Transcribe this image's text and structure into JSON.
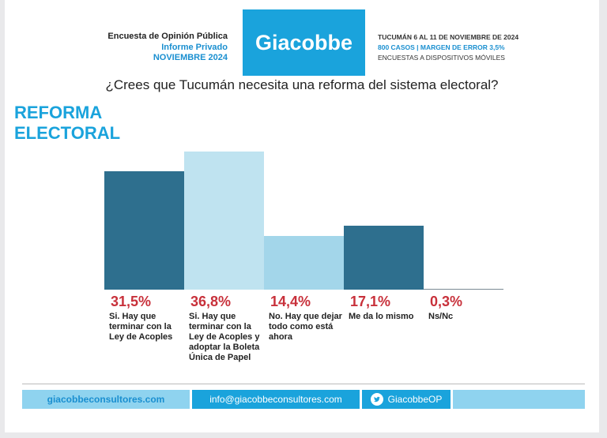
{
  "header": {
    "survey_title": "Encuesta de Opinión Pública",
    "report_type": "Informe Privado",
    "date": "NOVIEMBRE 2024",
    "brand": "Giacobbe",
    "details": [
      "TUCUMÁN 6 AL 11 DE NOVIEMBRE DE 2024",
      "800 CASOS | MARGEN DE ERROR 3,5%",
      "ENCUESTAS A DISPOSITIVOS MÓVILES"
    ]
  },
  "chart_data": {
    "type": "bar",
    "title": "¿Crees que Tucumán necesita una reforma del sistema electoral?",
    "subtitle": "REFORMA ELECTORAL",
    "categories": [
      "Si. Hay que terminar con la Ley de Acoples",
      "Si. Hay que terminar con la Ley de Acoples y adoptar la Boleta Única de Papel",
      "No. Hay que dejar todo como está ahora",
      "Me da lo mismo",
      "Ns/Nc"
    ],
    "values": [
      31.5,
      36.8,
      14.4,
      17.1,
      0.3
    ],
    "value_labels": [
      "31,5%",
      "36,8%",
      "14,4%",
      "17,1%",
      "0,3%"
    ],
    "colors": [
      "#2e6f8e",
      "#bfe3f0",
      "#a3d6ea",
      "#2e6f8e",
      "#7a8a94"
    ]
  },
  "footer": {
    "website": "giacobbeconsultores.com",
    "email": "info@giacobbeconsultores.com",
    "twitter": "GiacobbeOP"
  }
}
